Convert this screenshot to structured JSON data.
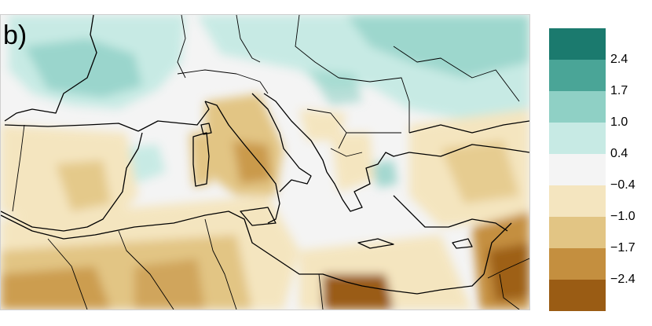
{
  "panel_label": "b)",
  "legend": {
    "colors": [
      "#1b7a6e",
      "#4aa597",
      "#8fd0c5",
      "#c7eae4",
      "#f4f4f4",
      "#f4e5bf",
      "#e2c584",
      "#c48f3f",
      "#9a5c14"
    ],
    "ticks": [
      "2.4",
      "1.7",
      "1.0",
      "0.4",
      "−0.4",
      "−1.0",
      "−1.7",
      "−2.4"
    ]
  }
}
